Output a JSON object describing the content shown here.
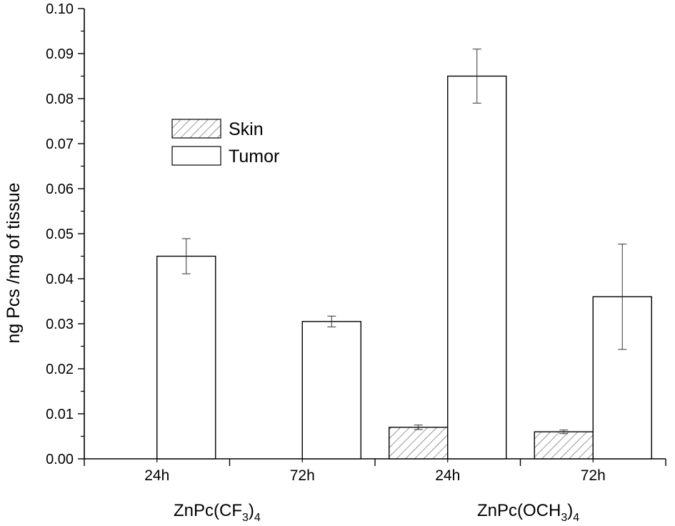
{
  "chart_data": {
    "type": "bar",
    "ylabel": "ng Pcs /mg of tissue",
    "ylim": [
      0,
      0.1
    ],
    "yticks": [
      "0.00",
      "0.01",
      "0.02",
      "0.03",
      "0.04",
      "0.05",
      "0.06",
      "0.07",
      "0.08",
      "0.09",
      "0.10"
    ],
    "categories": [
      "24h",
      "72h",
      "24h",
      "72h"
    ],
    "groups": [
      {
        "label_main": "ZnPc(CF",
        "sub1": "3",
        "mid": ")",
        "sub2": "4",
        "categories": [
          0,
          1
        ]
      },
      {
        "label_main": "ZnPc(OCH",
        "sub1": "3",
        "mid": ")",
        "sub2": "4",
        "categories": [
          2,
          3
        ]
      }
    ],
    "series": [
      {
        "name": "Skin",
        "pattern": "hatched",
        "values": [
          0.0,
          0.0,
          0.007,
          0.006
        ],
        "errors": [
          0.0,
          0.0,
          0.0005,
          0.0004
        ]
      },
      {
        "name": "Tumor",
        "pattern": "open",
        "values": [
          0.045,
          0.0305,
          0.085,
          0.036
        ],
        "errors": [
          0.0039,
          0.0012,
          0.006,
          0.0117
        ]
      }
    ],
    "legend": {
      "position": "upper-left"
    },
    "grid": false
  }
}
